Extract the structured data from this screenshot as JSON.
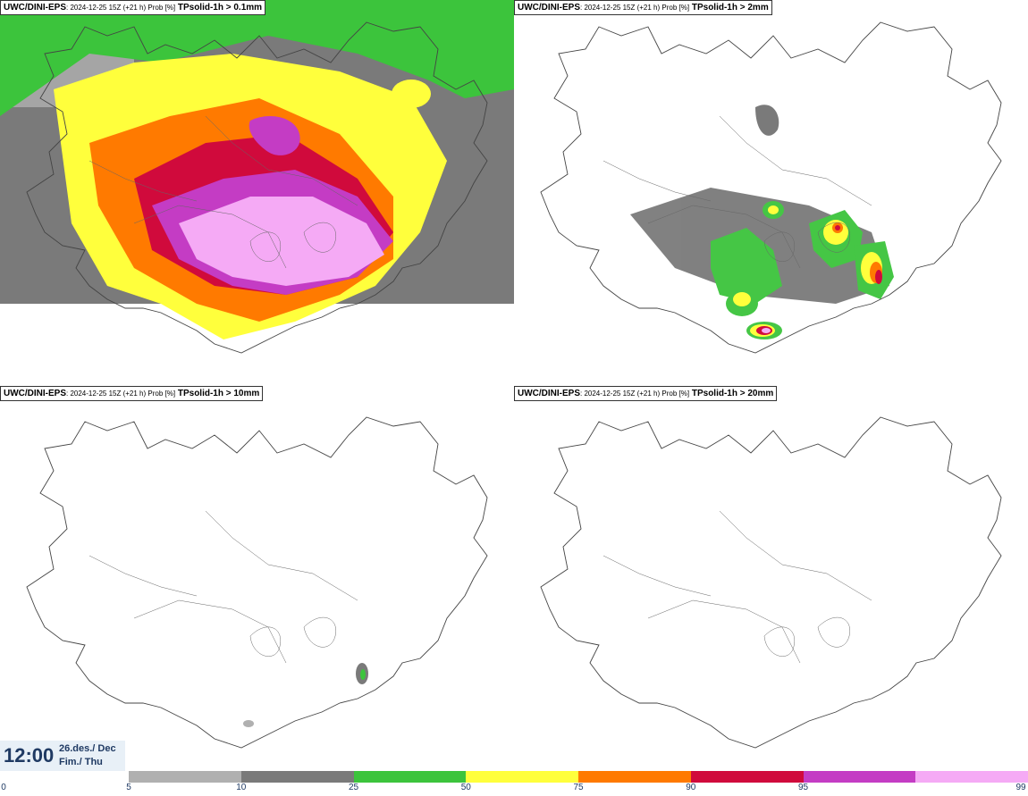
{
  "panels": [
    {
      "source": "UWC/DINI-EPS",
      "meta": ": 2024-12-25 15Z (+21 h) Prob [%]",
      "param": "TPsolid-1h > 0.1mm"
    },
    {
      "source": "UWC/DINI-EPS",
      "meta": ": 2024-12-25 15Z (+21 h) Prob [%]",
      "param": "TPsolid-1h > 2mm"
    },
    {
      "source": "UWC/DINI-EPS",
      "meta": ": 2024-12-25 15Z (+21 h) Prob [%]",
      "param": "TPsolid-1h > 10mm"
    },
    {
      "source": "UWC/DINI-EPS",
      "meta": ": 2024-12-25 15Z (+21 h) Prob [%]",
      "param": "TPsolid-1h > 20mm"
    }
  ],
  "time": {
    "clock": "12:00",
    "date_line1": "26.des./ Dec",
    "date_line2": "Fim./ Thu"
  },
  "legend": {
    "ticks": [
      "0",
      "5",
      "10",
      "25",
      "50",
      "75",
      "90",
      "95",
      "99"
    ],
    "colors": [
      "#b0b0b0",
      "#7a7a7a",
      "#3cc43c",
      "#ffff3c",
      "#ff7a00",
      "#d00a3c",
      "#c43cc4",
      "#f5aaf5"
    ]
  },
  "palette": {
    "light_gray": "#b0b0b0",
    "dark_gray": "#7a7a7a",
    "green": "#3cc43c",
    "yellow": "#ffff3c",
    "orange": "#ff7a00",
    "red": "#d00a3c",
    "purple": "#c43cc4",
    "pink": "#f5aaf5"
  }
}
